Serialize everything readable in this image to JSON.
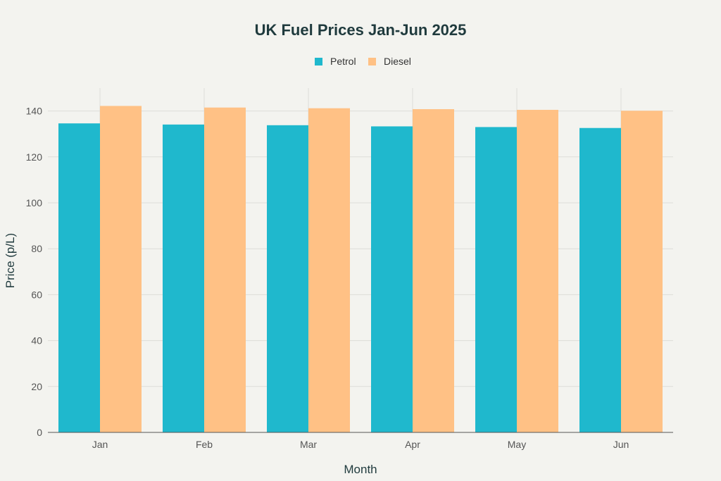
{
  "chart_data": {
    "type": "bar",
    "title": "UK Fuel Prices Jan-Jun 2025",
    "xlabel": "Month",
    "ylabel": "Price (p/L)",
    "categories": [
      "Jan",
      "Feb",
      "Mar",
      "Apr",
      "May",
      "Jun"
    ],
    "series": [
      {
        "name": "Petrol",
        "color": "#1fb8cd",
        "values": [
          134.6,
          134.1,
          133.8,
          133.3,
          133.0,
          132.6
        ]
      },
      {
        "name": "Diesel",
        "color": "#ffc185",
        "values": [
          142.2,
          141.5,
          141.2,
          140.8,
          140.5,
          140.1
        ]
      }
    ],
    "ylim": [
      0,
      150
    ],
    "yticks": [
      0,
      20,
      40,
      60,
      80,
      100,
      120,
      140
    ],
    "grid": true,
    "legend": "top-center"
  }
}
